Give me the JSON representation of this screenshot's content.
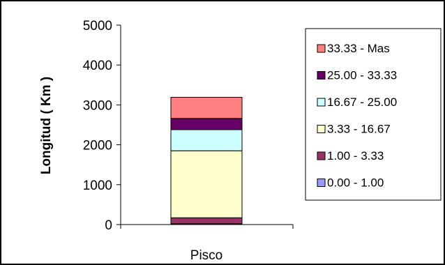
{
  "chart_data": {
    "type": "bar",
    "stacked": true,
    "categories": [
      "Pisco"
    ],
    "ylabel": "Longitud ( Km )",
    "xlabel": "",
    "ylim": [
      0,
      5000
    ],
    "yticks": [
      0,
      1000,
      2000,
      3000,
      4000,
      5000
    ],
    "grid": false,
    "legend_position": "right",
    "series": [
      {
        "name": "0.00 - 1.00",
        "color": "#9999ff",
        "values": [
          20
        ]
      },
      {
        "name": "1.00 - 3.33",
        "color": "#993366",
        "values": [
          150
        ]
      },
      {
        "name": "3.33 - 16.67",
        "color": "#ffffcc",
        "values": [
          1680
        ]
      },
      {
        "name": "16.67 - 25.00",
        "color": "#ccffff",
        "values": [
          530
        ]
      },
      {
        "name": "25.00 - 33.33",
        "color": "#660066",
        "values": [
          280
        ]
      },
      {
        "name": "33.33 - Mas",
        "color": "#ff8080",
        "values": [
          530
        ]
      }
    ]
  }
}
